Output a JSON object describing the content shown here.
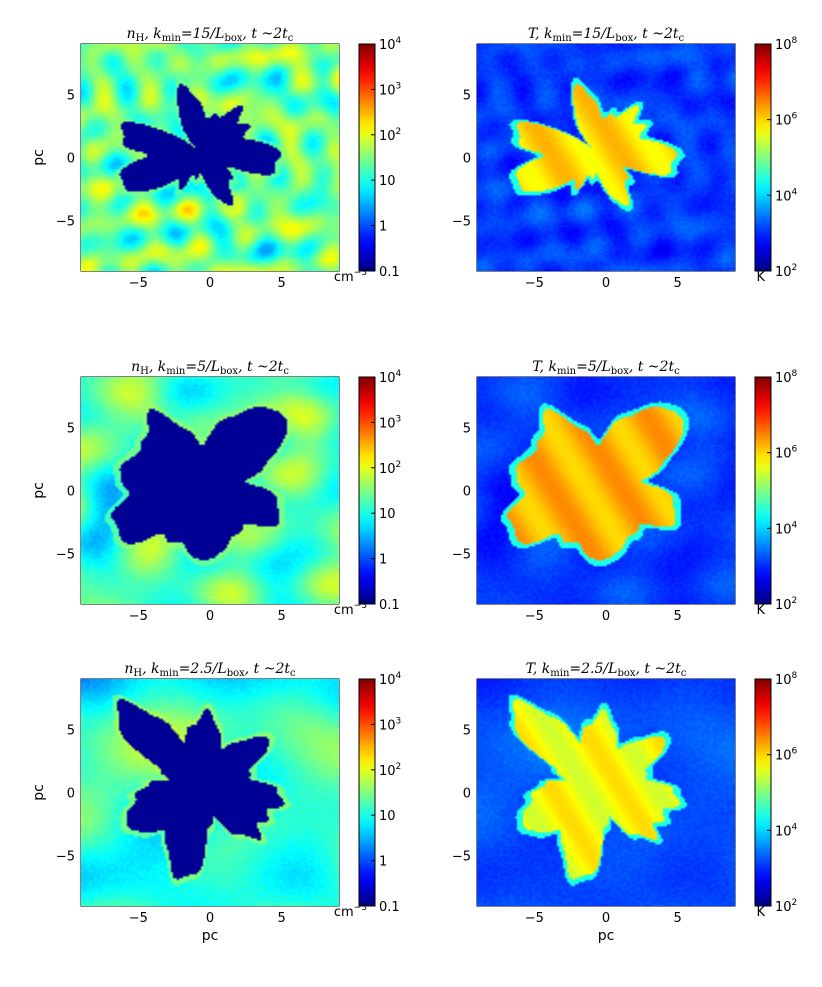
{
  "figure": {
    "xlabel_bottom": "pc",
    "ylabel": "pc"
  },
  "chart_data": [
    {
      "type": "heatmap",
      "title_parts": [
        "n",
        "H",
        ", k",
        "min",
        "=15/L",
        "box",
        ", t ~2t",
        "c"
      ],
      "xlabel": "",
      "ylabel": "pc",
      "xlim": [
        -9,
        9
      ],
      "ylim": [
        -9,
        9
      ],
      "xticks": [
        -5,
        0,
        5
      ],
      "yticks": [
        5,
        0,
        -5
      ],
      "colorbar": {
        "scale": "log",
        "range": [
          0.1,
          10000
        ],
        "unit": "cm",
        "unit_exp": "−3",
        "ticks": [
          {
            "value": 10000,
            "base": "10",
            "exp": "4"
          },
          {
            "value": 1000,
            "base": "10",
            "exp": "3"
          },
          {
            "value": 100,
            "base": "10",
            "exp": "2"
          },
          {
            "value": 10,
            "base": "10",
            "exp": ""
          },
          {
            "value": 1,
            "base": "1",
            "exp": ""
          },
          {
            "value": 0.1,
            "base": "0.1",
            "exp": ""
          }
        ]
      },
      "field": {
        "background_level": 0.48,
        "cavity_level": 0.02,
        "cavity_mean_radius_pc": 3.8,
        "structure": "small-scale filamentary clumps"
      }
    },
    {
      "type": "heatmap",
      "title_parts": [
        "T",
        "",
        ", k",
        "min",
        "=15/L",
        "box",
        ", t ~2t",
        "c"
      ],
      "xlabel": "",
      "ylabel": "",
      "xlim": [
        -9,
        9
      ],
      "ylim": [
        -9,
        9
      ],
      "xticks": [
        -5,
        0,
        5
      ],
      "yticks": [
        5,
        0,
        -5
      ],
      "colorbar": {
        "scale": "log",
        "range": [
          100,
          100000000
        ],
        "unit": "K",
        "unit_exp": "",
        "ticks": [
          {
            "value": 100000000,
            "base": "10",
            "exp": "8"
          },
          {
            "value": 1000000,
            "base": "10",
            "exp": "6"
          },
          {
            "value": 10000,
            "base": "10",
            "exp": "4"
          },
          {
            "value": 100,
            "base": "10",
            "exp": "2"
          }
        ]
      },
      "field": {
        "background_level": 0.18,
        "cavity_level": 0.66,
        "cavity_mean_radius_pc": 3.8,
        "structure": "hot bubble with fingered edge"
      }
    },
    {
      "type": "heatmap",
      "title_parts": [
        "n",
        "H",
        ", k",
        "min",
        "=5/L",
        "box",
        ", t ~2t",
        "c"
      ],
      "xlabel": "",
      "ylabel": "pc",
      "xlim": [
        -9,
        9
      ],
      "ylim": [
        -9,
        9
      ],
      "xticks": [
        -5,
        0,
        5
      ],
      "yticks": [
        5,
        0,
        -5
      ],
      "colorbar": {
        "scale": "log",
        "range": [
          0.1,
          10000
        ],
        "unit": "cm",
        "unit_exp": "−3",
        "ticks": [
          {
            "value": 10000,
            "base": "10",
            "exp": "4"
          },
          {
            "value": 1000,
            "base": "10",
            "exp": "3"
          },
          {
            "value": 100,
            "base": "10",
            "exp": "2"
          },
          {
            "value": 10,
            "base": "10",
            "exp": ""
          },
          {
            "value": 1,
            "base": "1",
            "exp": ""
          },
          {
            "value": 0.1,
            "base": "0.1",
            "exp": ""
          }
        ]
      },
      "field": {
        "background_level": 0.45,
        "cavity_level": 0.02,
        "cavity_mean_radius_pc": 5.5,
        "structure": "medium-scale clumps"
      }
    },
    {
      "type": "heatmap",
      "title_parts": [
        "T",
        "",
        ", k",
        "min",
        "=5/L",
        "box",
        ", t ~2t",
        "c"
      ],
      "xlabel": "",
      "ylabel": "",
      "xlim": [
        -9,
        9
      ],
      "ylim": [
        -9,
        9
      ],
      "xticks": [
        -5,
        0,
        5
      ],
      "yticks": [
        5,
        0,
        -5
      ],
      "colorbar": {
        "scale": "log",
        "range": [
          100,
          100000000
        ],
        "unit": "K",
        "unit_exp": "",
        "ticks": [
          {
            "value": 100000000,
            "base": "10",
            "exp": "8"
          },
          {
            "value": 1000000,
            "base": "10",
            "exp": "6"
          },
          {
            "value": 10000,
            "base": "10",
            "exp": "4"
          },
          {
            "value": 100,
            "base": "10",
            "exp": "2"
          }
        ]
      },
      "field": {
        "background_level": 0.18,
        "cavity_level": 0.7,
        "cavity_mean_radius_pc": 5.5,
        "structure": "hot bubble with fingered edge"
      }
    },
    {
      "type": "heatmap",
      "title_parts": [
        "n",
        "H",
        ", k",
        "min",
        "=2.5/L",
        "box",
        ", t ~2t",
        "c"
      ],
      "xlabel": "pc",
      "ylabel": "pc",
      "xlim": [
        -9,
        9
      ],
      "ylim": [
        -9,
        9
      ],
      "xticks": [
        -5,
        0,
        5
      ],
      "yticks": [
        5,
        0,
        -5
      ],
      "colorbar": {
        "scale": "log",
        "range": [
          0.1,
          10000
        ],
        "unit": "cm",
        "unit_exp": "−3",
        "ticks": [
          {
            "value": 10000,
            "base": "10",
            "exp": "4"
          },
          {
            "value": 1000,
            "base": "10",
            "exp": "3"
          },
          {
            "value": 100,
            "base": "10",
            "exp": "2"
          },
          {
            "value": 10,
            "base": "10",
            "exp": ""
          },
          {
            "value": 1,
            "base": "1",
            "exp": ""
          },
          {
            "value": 0.1,
            "base": "0.1",
            "exp": ""
          }
        ]
      },
      "field": {
        "background_level": 0.42,
        "cavity_level": 0.02,
        "cavity_mean_radius_pc": 5.0,
        "structure": "large-scale diffuse clumps"
      }
    },
    {
      "type": "heatmap",
      "title_parts": [
        "T",
        "",
        ", k",
        "min",
        "=2.5/L",
        "box",
        ", t ~2t",
        "c"
      ],
      "xlabel": "pc",
      "ylabel": "",
      "xlim": [
        -9,
        9
      ],
      "ylim": [
        -9,
        9
      ],
      "xticks": [
        -5,
        0,
        5
      ],
      "yticks": [
        5,
        0,
        -5
      ],
      "colorbar": {
        "scale": "log",
        "range": [
          100,
          100000000
        ],
        "unit": "K",
        "unit_exp": "",
        "ticks": [
          {
            "value": 100000000,
            "base": "10",
            "exp": "8"
          },
          {
            "value": 1000000,
            "base": "10",
            "exp": "6"
          },
          {
            "value": 10000,
            "base": "10",
            "exp": "4"
          },
          {
            "value": 100,
            "base": "10",
            "exp": "2"
          }
        ]
      },
      "field": {
        "background_level": 0.2,
        "cavity_level": 0.62,
        "cavity_mean_radius_pc": 5.0,
        "structure": "hot bubble with fingered edge"
      }
    }
  ]
}
